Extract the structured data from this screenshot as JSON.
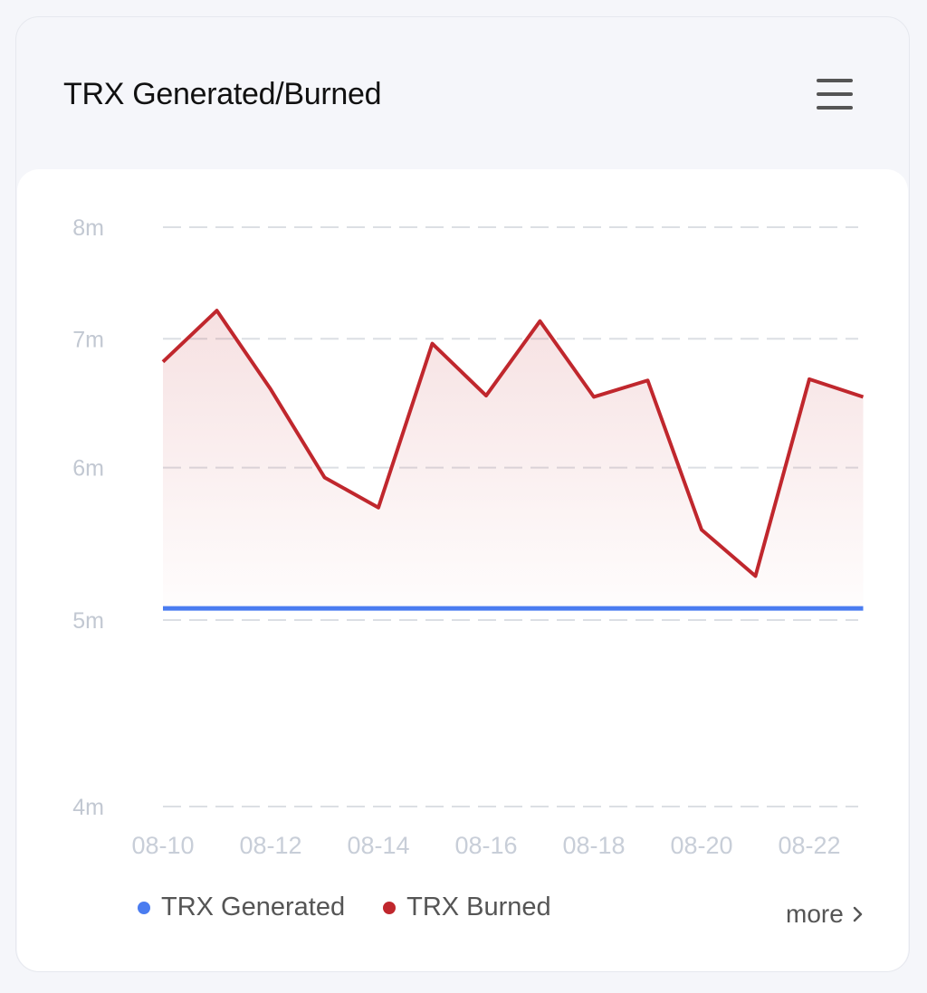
{
  "card": {
    "title": "TRX Generated/Burned",
    "menu_icon": "hamburger-menu-icon",
    "more_label": "more",
    "more_icon": "chevron-right-icon"
  },
  "colors": {
    "generated": "#4a7cf0",
    "burned": "#c0272d",
    "grid": "#dcdfe4",
    "tick": "#c4cad4"
  },
  "legend": [
    {
      "label": "TRX Generated",
      "color": "#4a7cf0"
    },
    {
      "label": "TRX Burned",
      "color": "#c0272d"
    }
  ],
  "chart_data": {
    "type": "line",
    "title": "TRX Generated/Burned",
    "xlabel": "",
    "ylabel": "",
    "y_scale": "log",
    "ylim": [
      4000000,
      8000000
    ],
    "y_ticks": [
      "8m",
      "7m",
      "6m",
      "5m",
      "4m"
    ],
    "y_tick_values": [
      8,
      7,
      6,
      5,
      4
    ],
    "x": [
      "08-10",
      "08-11",
      "08-12",
      "08-13",
      "08-14",
      "08-15",
      "08-16",
      "08-17",
      "08-18",
      "08-19",
      "08-20",
      "08-21",
      "08-22",
      "08-23"
    ],
    "x_tick_labels": [
      "08-10",
      "08-12",
      "08-14",
      "08-16",
      "08-18",
      "08-20",
      "08-22"
    ],
    "grid": true,
    "legend_position": "bottom-left",
    "series": [
      {
        "name": "TRX Generated",
        "color": "#4a7cf0",
        "values_m": [
          5.07,
          5.07,
          5.07,
          5.07,
          5.07,
          5.07,
          5.07,
          5.07,
          5.07,
          5.07,
          5.07,
          5.07,
          5.07,
          5.07
        ]
      },
      {
        "name": "TRX Burned",
        "color": "#c0272d",
        "area": true,
        "values_m": [
          6.81,
          7.24,
          6.59,
          5.93,
          5.72,
          6.96,
          6.54,
          7.15,
          6.53,
          6.66,
          5.57,
          5.27,
          6.67,
          6.53
        ]
      }
    ]
  }
}
